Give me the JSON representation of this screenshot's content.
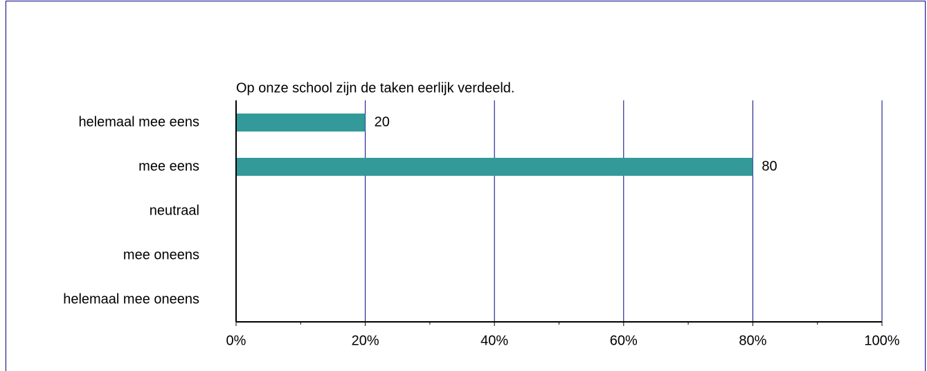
{
  "chart_data": {
    "type": "hbar",
    "title": "Op onze school zijn de taken eerlijk verdeeld.",
    "categories": [
      "helemaal mee eens",
      "mee eens",
      "neutraal",
      "mee oneens",
      "helemaal mee oneens"
    ],
    "values": [
      20,
      80,
      null,
      null,
      null
    ],
    "color": "#339999",
    "xlim": [
      0,
      100
    ],
    "xticks": [
      {
        "value": 0,
        "label": "0%"
      },
      {
        "value": 20,
        "label": "20%"
      },
      {
        "value": 40,
        "label": "40%"
      },
      {
        "value": 60,
        "label": "60%"
      },
      {
        "value": 80,
        "label": "80%"
      },
      {
        "value": 100,
        "label": "100%"
      }
    ],
    "grid": true
  }
}
